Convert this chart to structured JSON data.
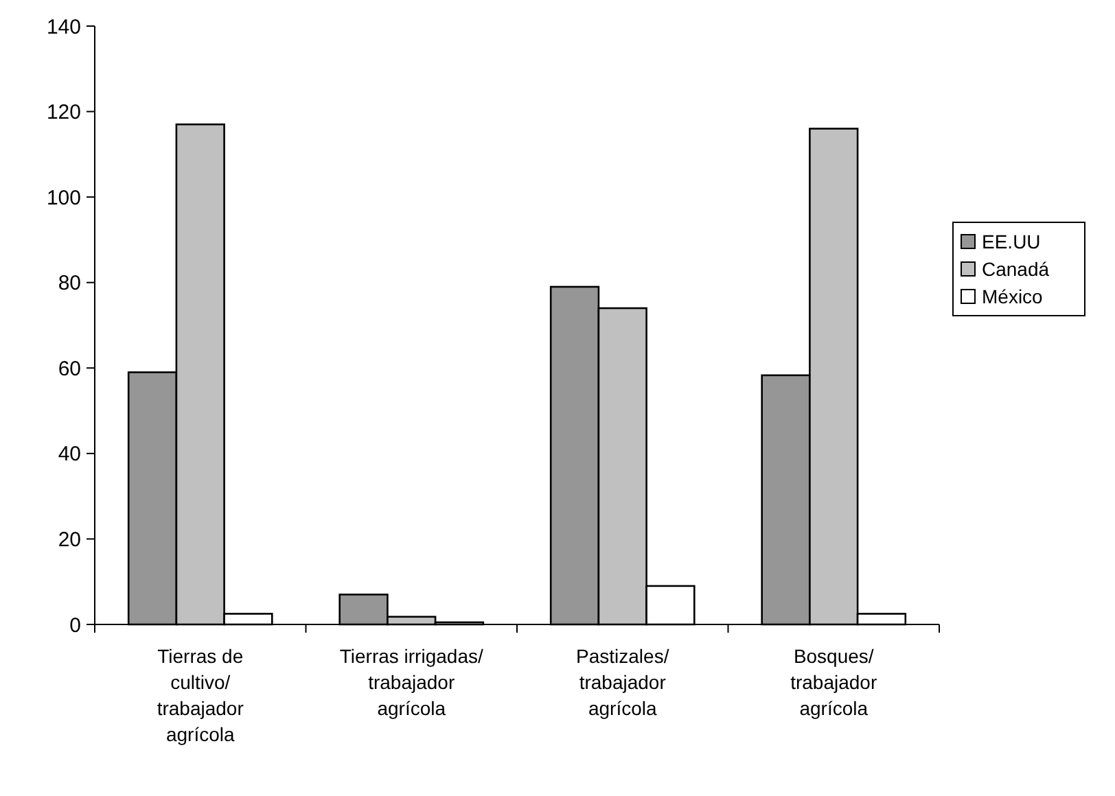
{
  "chart_data": {
    "type": "bar",
    "categories": [
      "Tierras de cultivo/ trabajador agrícola",
      "Tierras irrigadas/ trabajador agrícola",
      "Pastizales/ trabajador agrícola",
      "Bosques/ trabajador agrícola"
    ],
    "series": [
      {
        "name": "EE.UU",
        "color": "#969696",
        "values": [
          59,
          7,
          79,
          58.3
        ]
      },
      {
        "name": "Canadá",
        "color": "#c0c0c0",
        "values": [
          117,
          1.8,
          74,
          116
        ]
      },
      {
        "name": "México",
        "color": "#ffffff",
        "values": [
          2.5,
          0.5,
          9,
          2.5
        ]
      }
    ],
    "ylim": [
      0,
      140
    ],
    "yticks": [
      0,
      20,
      40,
      60,
      80,
      100,
      120,
      140
    ],
    "legend": "right"
  }
}
